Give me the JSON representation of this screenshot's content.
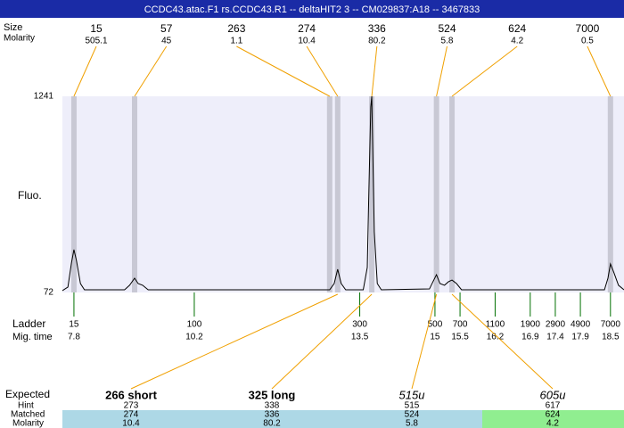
{
  "chart_data": {
    "type": "electropherogram",
    "title": "CCDC43.atac.F1  rs.CCDC43.R1 -- deltaHIT2 3 -- CM029837:A18 -- 3467833",
    "y_label": "Fluo.",
    "ylim": [
      72,
      1241
    ],
    "yticks": [
      72,
      1241
    ],
    "xlim": [
      7.57,
      18.77
    ],
    "trace": {
      "color": "#000000",
      "x": [
        7.57,
        7.68,
        7.75,
        7.8,
        7.85,
        7.93,
        8.01,
        8.81,
        8.91,
        9.01,
        9.08,
        9.17,
        9.28,
        12.9,
        12.99,
        13.06,
        13.13,
        13.22,
        13.57,
        13.65,
        13.68,
        13.72,
        13.74,
        13.75,
        13.79,
        13.85,
        13.93,
        14.89,
        14.96,
        15.03,
        15.1,
        15.19,
        15.27,
        15.34,
        15.43,
        15.53,
        18.38,
        18.45,
        18.5,
        18.57,
        18.66,
        18.77
      ],
      "y": [
        83,
        104,
        247,
        327,
        263,
        125,
        88,
        88,
        115,
        157,
        125,
        115,
        88,
        88,
        125,
        210,
        125,
        88,
        88,
        221,
        646,
        1177,
        1241,
        1071,
        433,
        125,
        88,
        93,
        136,
        178,
        125,
        115,
        136,
        146,
        125,
        88,
        88,
        157,
        242,
        189,
        115,
        88
      ]
    },
    "peaks": {
      "size_label": "Size",
      "molarity_label": "Molarity",
      "sizes": [
        15,
        57,
        263,
        274,
        336,
        524,
        624,
        7000
      ],
      "molarities": [
        505.1,
        45,
        1.1,
        10.4,
        80.2,
        5.8,
        4.2,
        0.5
      ],
      "times": [
        7.8,
        9.01,
        12.9,
        13.06,
        13.74,
        15.03,
        15.34,
        18.5
      ]
    },
    "ladder": {
      "label": "Ladder",
      "time_label": "Mig. time",
      "color": "#007000",
      "sizes": [
        15,
        100,
        300,
        500,
        700,
        1100,
        1900,
        2900,
        4900,
        7000
      ],
      "times": [
        7.8,
        10.2,
        13.5,
        15,
        15.5,
        16.2,
        16.9,
        17.4,
        17.9,
        18.5
      ]
    },
    "expected": {
      "label": "Expected",
      "hint_label": "Hint",
      "matched_label": "Matched",
      "molarity_label": "Molarity",
      "names": [
        "266 short",
        "325 long",
        "515u",
        "605u"
      ],
      "hints": [
        273,
        338,
        515,
        617
      ],
      "matched": [
        274,
        336,
        524,
        624
      ],
      "molarities": [
        10.4,
        80.2,
        5.8,
        4.2
      ]
    }
  }
}
